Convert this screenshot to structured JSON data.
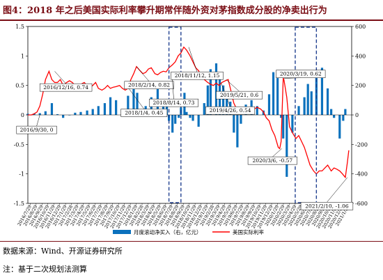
{
  "figure": {
    "title": "图4：2018 年之后美国实际利率攀升期常伴随外资对茅指数成分股的净卖出行为",
    "source": "数据来源：Wind、开源证券研究所",
    "note": "注：基于二次规划法测算"
  },
  "colors": {
    "bar": "#0b71bd",
    "line": "#ff0000",
    "accent": "#7a0d14",
    "highlight_box": "#1f3f8f"
  },
  "chart_data": {
    "type": "bar+line",
    "x_tick_labels": [
      "2016/7/29",
      "2016/8/29",
      "2016/9/29",
      "2016/10/29",
      "2016/11/29",
      "2016/12/29",
      "2017/1/29",
      "2017/2/28",
      "2017/3/29",
      "2017/4/29",
      "2017/5/29",
      "2017/6/29",
      "2017/7/29",
      "2017/8/29",
      "2017/9/29",
      "2017/10/29",
      "2017/11/29",
      "2017/12/29",
      "2018/1/29",
      "2018/2/28",
      "2018/3/29",
      "2018/4/29",
      "2018/5/29",
      "2018/6/29",
      "2018/7/29",
      "2018/8/29",
      "2018/9/29",
      "2018/10/29",
      "2018/11/29",
      "2018/12/29",
      "2019/1/29",
      "2019/2/28",
      "2019/3/29",
      "2019/4/29",
      "2019/5/29",
      "2019/6/29",
      "2019/7/29",
      "2019/8/29",
      "2019/9/29",
      "2019/10/29",
      "2019/11/29",
      "2019/12/29",
      "2020/1/29",
      "2020/2/29",
      "2020/3/29",
      "2020/4/29",
      "2020/5/29",
      "2020/6/29",
      "2020/7/29",
      "2020/8/29",
      "2020/9/29",
      "2020/10/29",
      "2020/11/29",
      "2020/12/29",
      "2021/1/29"
    ],
    "y_left": {
      "ticks": [
        "-1.5",
        "-1",
        "-0.5",
        "0",
        "0.5",
        "1",
        "1.5"
      ],
      "values": [
        -1.5,
        -1,
        -0.5,
        0,
        0.5,
        1,
        1.5
      ],
      "range": [
        -1.5,
        1.5
      ]
    },
    "y_right": {
      "ticks": [
        "-600",
        "-400",
        "-200",
        "0",
        "200",
        "400",
        "600"
      ],
      "values": [
        -600,
        -400,
        -200,
        0,
        200,
        400,
        600
      ],
      "range": [
        -600,
        600
      ]
    },
    "series": [
      {
        "name": "月度滚动净买入（右，亿元）",
        "kind": "bar",
        "axis": "right",
        "x": [
          2016.58,
          2016.67,
          2016.75,
          2016.83,
          2016.92,
          2017.0,
          2017.08,
          2017.17,
          2017.25,
          2017.33,
          2017.42,
          2017.5,
          2017.58,
          2017.67,
          2017.75,
          2017.83,
          2017.92,
          2018.0,
          2018.08,
          2018.13,
          2018.17,
          2018.25,
          2018.33,
          2018.42,
          2018.5,
          2018.55,
          2018.58,
          2018.63,
          2018.67,
          2018.72,
          2018.75,
          2018.8,
          2018.83,
          2018.88,
          2018.92,
          2019.0,
          2019.08,
          2019.13,
          2019.17,
          2019.25,
          2019.3,
          2019.35,
          2019.4,
          2019.45,
          2019.5,
          2019.55,
          2019.6,
          2019.67,
          2019.75,
          2019.83,
          2019.92,
          2020.0,
          2020.06,
          2020.12,
          2020.17,
          2020.2,
          2020.25,
          2020.33,
          2020.42,
          2020.5,
          2020.55,
          2020.6,
          2020.67,
          2020.75,
          2020.83,
          2020.88,
          2020.92,
          2021.0,
          2021.05,
          2021.08
        ],
        "values": [
          8,
          10,
          12,
          25,
          80,
          5,
          -20,
          0,
          15,
          20,
          30,
          40,
          60,
          80,
          120,
          100,
          40,
          130,
          200,
          150,
          20,
          60,
          120,
          200,
          100,
          60,
          -40,
          -120,
          -60,
          -20,
          50,
          150,
          20,
          -20,
          -40,
          -80,
          80,
          200,
          310,
          350,
          260,
          200,
          150,
          90,
          -120,
          -220,
          -60,
          70,
          100,
          60,
          30,
          140,
          290,
          250,
          -20,
          -160,
          -420,
          -120,
          60,
          120,
          210,
          160,
          260,
          320,
          180,
          40,
          -20,
          -160,
          -40,
          40
        ]
      },
      {
        "name": "美国实际利率",
        "kind": "line",
        "axis": "left",
        "x": [
          2016.58,
          2016.63,
          2016.67,
          2016.71,
          2016.75,
          2016.79,
          2016.83,
          2016.88,
          2016.92,
          2016.96,
          2017.0,
          2017.04,
          2017.08,
          2017.13,
          2017.17,
          2017.21,
          2017.25,
          2017.29,
          2017.33,
          2017.38,
          2017.42,
          2017.46,
          2017.5,
          2017.54,
          2017.58,
          2017.63,
          2017.67,
          2017.71,
          2017.75,
          2017.79,
          2017.83,
          2017.88,
          2017.92,
          2017.96,
          2018.0,
          2018.04,
          2018.08,
          2018.12,
          2018.17,
          2018.21,
          2018.25,
          2018.29,
          2018.33,
          2018.38,
          2018.42,
          2018.46,
          2018.5,
          2018.54,
          2018.58,
          2018.63,
          2018.67,
          2018.71,
          2018.75,
          2018.79,
          2018.83,
          2018.88,
          2018.92,
          2018.96,
          2019.0,
          2019.04,
          2019.08,
          2019.13,
          2019.17,
          2019.21,
          2019.25,
          2019.29,
          2019.33,
          2019.38,
          2019.42,
          2019.46,
          2019.5,
          2019.54,
          2019.58,
          2019.63,
          2019.67,
          2019.71,
          2019.75,
          2019.79,
          2019.83,
          2019.88,
          2019.92,
          2019.96,
          2020.0,
          2020.04,
          2020.08,
          2020.13,
          2020.15,
          2020.17,
          2020.2,
          2020.21,
          2020.25,
          2020.29,
          2020.33,
          2020.38,
          2020.42,
          2020.46,
          2020.5,
          2020.54,
          2020.58,
          2020.63,
          2020.67,
          2020.71,
          2020.75,
          2020.79,
          2020.83,
          2020.88,
          2020.92,
          2020.96,
          2021.0,
          2021.04,
          2021.08,
          2021.11,
          2021.13
        ],
        "values": [
          0.0,
          0.0,
          0.02,
          0.05,
          0.15,
          0.35,
          0.6,
          0.74,
          0.6,
          0.55,
          0.55,
          0.6,
          0.5,
          0.55,
          0.58,
          0.55,
          0.5,
          0.45,
          0.52,
          0.55,
          0.5,
          0.47,
          0.5,
          0.55,
          0.45,
          0.42,
          0.45,
          0.5,
          0.45,
          0.47,
          0.48,
          0.5,
          0.45,
          0.42,
          0.45,
          0.6,
          0.7,
          0.82,
          0.75,
          0.7,
          0.72,
          0.78,
          0.8,
          0.7,
          0.68,
          0.72,
          0.74,
          0.73,
          0.8,
          0.85,
          0.9,
          1.0,
          1.05,
          1.15,
          1.1,
          1.0,
          0.9,
          0.8,
          0.75,
          0.65,
          0.6,
          0.55,
          0.52,
          0.5,
          0.54,
          0.5,
          0.55,
          0.58,
          0.6,
          0.4,
          0.2,
          0.1,
          0.02,
          0.08,
          0.05,
          0.07,
          0.12,
          0.1,
          0.13,
          0.1,
          0.05,
          -0.05,
          -0.1,
          -0.25,
          -0.35,
          -0.55,
          -0.57,
          -0.45,
          0.62,
          0.6,
          0.3,
          -0.2,
          -0.3,
          -0.4,
          -0.35,
          -0.45,
          -0.55,
          -0.7,
          -0.85,
          -0.95,
          -1.0,
          -0.95,
          -0.95,
          -0.9,
          -0.85,
          -0.95,
          -0.9,
          -0.92,
          -0.95,
          -1.0,
          -1.06,
          -0.8,
          -0.6
        ]
      }
    ],
    "highlight_ranges": [
      [
        2018.58,
        2018.75
      ],
      [
        2020.37,
        2020.67
      ]
    ],
    "annotations": [
      {
        "text": "2016/9/30, 0",
        "x": 2016.75,
        "y": 0.0,
        "label_x": 2016.42,
        "label_y": -0.19
      },
      {
        "text": "2016/12/16, 0.74",
        "x": 2016.96,
        "y": 0.74,
        "label_x": 2016.75,
        "label_y": 0.53
      },
      {
        "text": "2018/2/14, 0.82",
        "x": 2018.12,
        "y": 0.82,
        "label_x": 2017.95,
        "label_y": 0.57
      },
      {
        "text": "2018/1/4, 0.45",
        "x": 2018.01,
        "y": 0.45,
        "label_x": 2017.9,
        "label_y": 0.1
      },
      {
        "text": "2018/8/14, 0.73",
        "x": 2018.62,
        "y": 0.73,
        "label_x": 2018.3,
        "label_y": 0.27
      },
      {
        "text": "2018/11/12, 1.15",
        "x": 2018.86,
        "y": 1.15,
        "label_x": 2018.61,
        "label_y": 0.73
      },
      {
        "text": "2019/4/26, 0.54",
        "x": 2019.32,
        "y": 0.54,
        "label_x": 2019.1,
        "label_y": 0.14
      },
      {
        "text": "2019/5/21, 0.6",
        "x": 2019.39,
        "y": 0.6,
        "label_x": 2019.25,
        "label_y": 0.4
      },
      {
        "text": "2020/3/6, -0.57",
        "x": 2020.18,
        "y": -0.57,
        "label_x": 2019.7,
        "label_y": -0.71
      },
      {
        "text": "2020/3/19, 0.62",
        "x": 2020.21,
        "y": 0.62,
        "label_x": 2020.1,
        "label_y": 0.76
      },
      {
        "text": "2021/2/10, -1.06",
        "x": 2021.11,
        "y": -1.06,
        "label_x": 2020.45,
        "label_y": -1.48
      }
    ]
  }
}
